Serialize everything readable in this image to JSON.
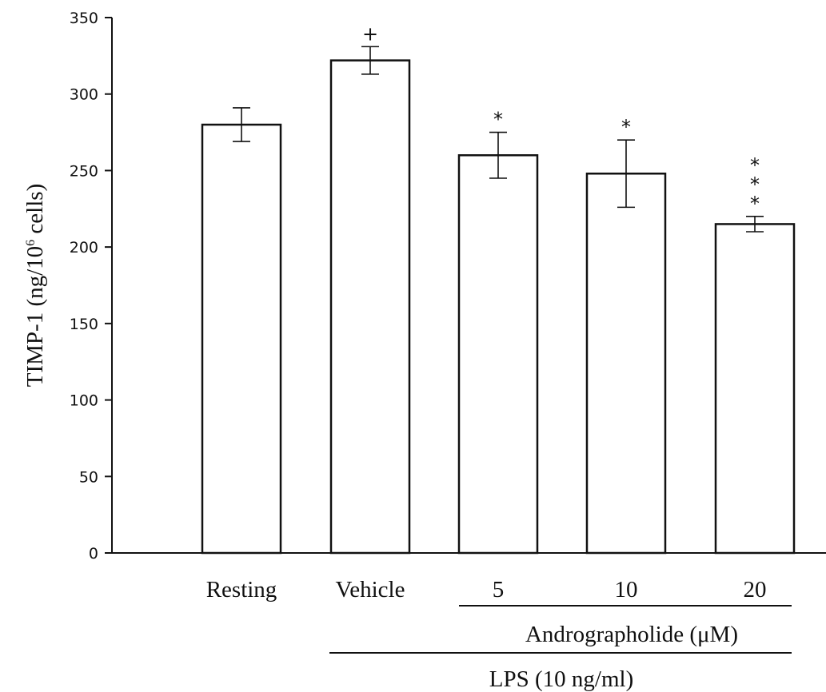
{
  "chart_data": {
    "type": "bar",
    "categories": [
      "Resting",
      "Vehicle",
      "5",
      "10",
      "20"
    ],
    "values": [
      280,
      322,
      260,
      248,
      215
    ],
    "errors": [
      11,
      9,
      15,
      22,
      5
    ],
    "annotations": [
      "",
      "+",
      "*",
      "*",
      "* * *"
    ],
    "ylim": [
      0,
      350
    ],
    "yticks": [
      0,
      50,
      100,
      150,
      200,
      250,
      300,
      350
    ],
    "ylabel": {
      "prefix": "TIMP-1 (ng/10",
      "superscript": "6",
      "suffix": " cells)"
    },
    "group_labels": {
      "inner": "Andrographolide (μM)",
      "outer": "LPS (10 ng/ml)"
    },
    "grid": false
  }
}
